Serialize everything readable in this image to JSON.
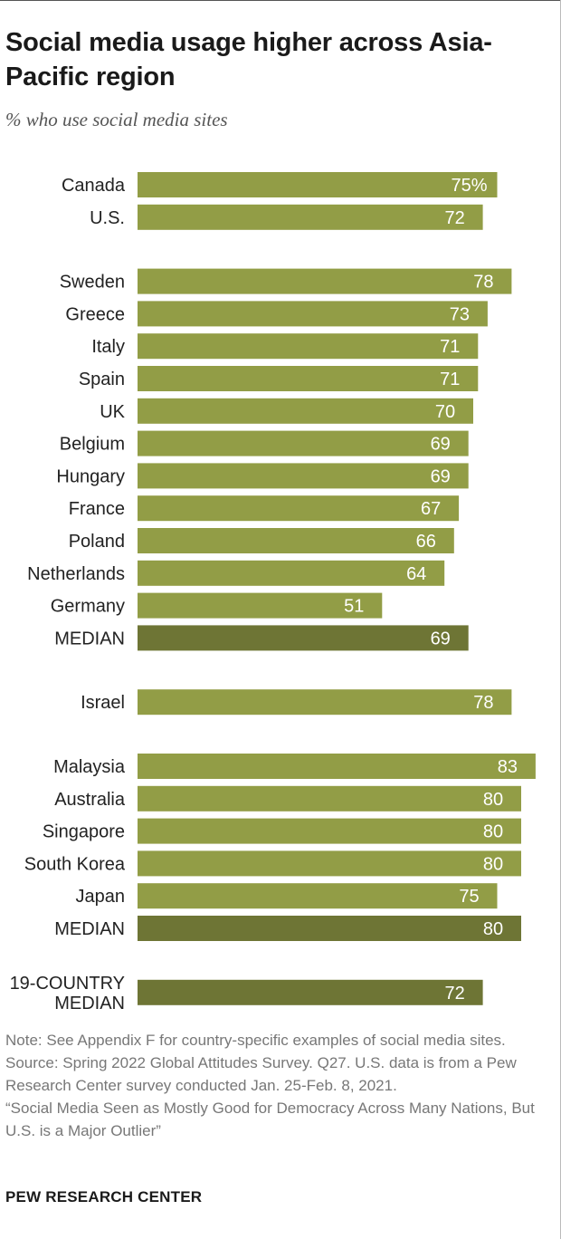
{
  "title": "Social media usage higher across Asia-Pacific region",
  "subtitle": "% who use social media sites",
  "colors": {
    "bar": "#929d46",
    "median_bar": "#6e7535",
    "value_text": "#ffffff"
  },
  "chart_data": {
    "type": "bar",
    "orientation": "horizontal",
    "title": "Social media usage higher across Asia-Pacific region",
    "subtitle": "% who use social media sites",
    "unit": "%",
    "xlim": [
      0,
      100
    ],
    "groups": [
      {
        "items": [
          {
            "label": "Canada",
            "value": 75,
            "display": "75%",
            "median": false
          },
          {
            "label": "U.S.",
            "value": 72,
            "display": "72",
            "median": false
          }
        ]
      },
      {
        "items": [
          {
            "label": "Sweden",
            "value": 78,
            "display": "78",
            "median": false
          },
          {
            "label": "Greece",
            "value": 73,
            "display": "73",
            "median": false
          },
          {
            "label": "Italy",
            "value": 71,
            "display": "71",
            "median": false
          },
          {
            "label": "Spain",
            "value": 71,
            "display": "71",
            "median": false
          },
          {
            "label": "UK",
            "value": 70,
            "display": "70",
            "median": false
          },
          {
            "label": "Belgium",
            "value": 69,
            "display": "69",
            "median": false
          },
          {
            "label": "Hungary",
            "value": 69,
            "display": "69",
            "median": false
          },
          {
            "label": "France",
            "value": 67,
            "display": "67",
            "median": false
          },
          {
            "label": "Poland",
            "value": 66,
            "display": "66",
            "median": false
          },
          {
            "label": "Netherlands",
            "value": 64,
            "display": "64",
            "median": false
          },
          {
            "label": "Germany",
            "value": 51,
            "display": "51",
            "median": false
          },
          {
            "label": "MEDIAN",
            "value": 69,
            "display": "69",
            "median": true
          }
        ]
      },
      {
        "items": [
          {
            "label": "Israel",
            "value": 78,
            "display": "78",
            "median": false
          }
        ]
      },
      {
        "items": [
          {
            "label": "Malaysia",
            "value": 83,
            "display": "83",
            "median": false
          },
          {
            "label": "Australia",
            "value": 80,
            "display": "80",
            "median": false
          },
          {
            "label": "Singapore",
            "value": 80,
            "display": "80",
            "median": false
          },
          {
            "label": "South Korea",
            "value": 80,
            "display": "80",
            "median": false
          },
          {
            "label": "Japan",
            "value": 75,
            "display": "75",
            "median": false
          },
          {
            "label": "MEDIAN",
            "value": 80,
            "display": "80",
            "median": true
          }
        ]
      },
      {
        "items": [
          {
            "label_lines": [
              "19-COUNTRY",
              "MEDIAN"
            ],
            "value": 72,
            "display": "72",
            "median": true
          }
        ]
      }
    ]
  },
  "notes": {
    "note": "Note: See Appendix F for country-specific examples of social media sites.",
    "source": "Source: Spring 2022 Global Attitudes Survey. Q27. U.S. data is from a Pew Research Center survey conducted Jan. 25-Feb. 8, 2021.",
    "report": "“Social Media Seen as Mostly Good for Democracy Across Many Nations, But U.S. is a Major Outlier”"
  },
  "footer": {
    "brand": "PEW RESEARCH CENTER"
  }
}
